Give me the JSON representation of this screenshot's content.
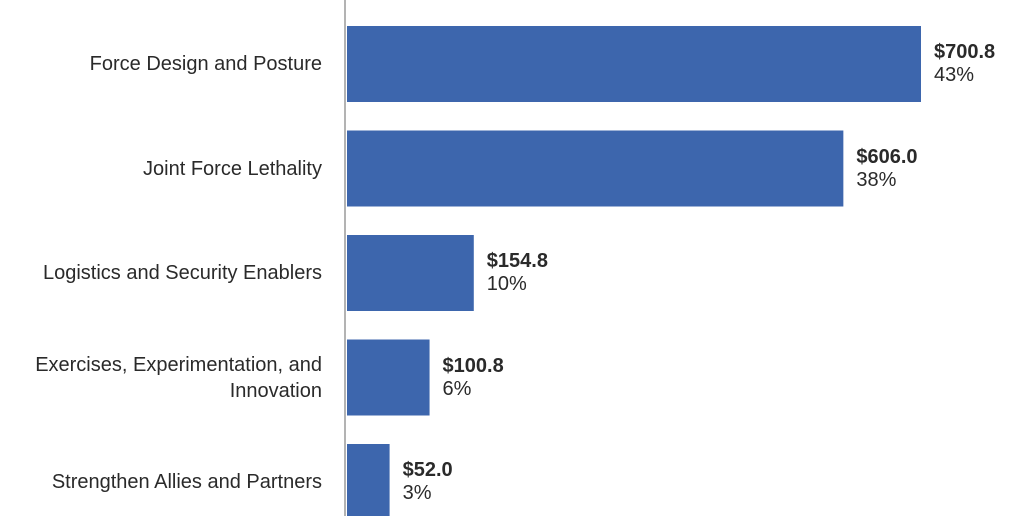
{
  "chart_data": {
    "type": "bar",
    "orientation": "horizontal",
    "categories": [
      "Force Design and Posture",
      "Joint Force Lethality",
      "Logistics and Security Enablers",
      "Exercises, Experimentation, and Innovation",
      "Strengthen Allies and Partners"
    ],
    "values": [
      700.8,
      606.0,
      154.8,
      100.8,
      52.0
    ],
    "value_labels": [
      "$700.8",
      "$606.0",
      "$154.8",
      "$100.8",
      "$52.0"
    ],
    "percent_labels": [
      "43%",
      "38%",
      "10%",
      "6%",
      "3%"
    ],
    "xlim": [
      0,
      700.8
    ],
    "bar_color": "#3d66ad",
    "axis_color": "#9a9a9a",
    "grid": false
  }
}
